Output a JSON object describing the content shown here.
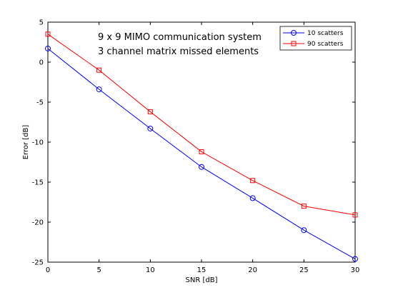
{
  "chart_data": {
    "type": "line",
    "annotation": [
      "9 x 9 MIMO communication system",
      "3 channel matrix missed elements"
    ],
    "xlabel": "SNR [dB]",
    "ylabel": "Error [dB]",
    "xlim": [
      0,
      30
    ],
    "ylim": [
      -25,
      5
    ],
    "xticks": [
      0,
      5,
      10,
      15,
      20,
      25,
      30
    ],
    "yticks": [
      5,
      0,
      -5,
      -10,
      -15,
      -20,
      -25
    ],
    "x": [
      0,
      5,
      10,
      15,
      20,
      25,
      30
    ],
    "grid": false,
    "legend_position": "top-right",
    "series": [
      {
        "name": "10 scatters",
        "color": "#0000ff",
        "marker": "circle",
        "values": [
          1.7,
          -3.4,
          -8.3,
          -13.1,
          -17.0,
          -21.0,
          -24.6
        ]
      },
      {
        "name": "90 scatters",
        "color": "#ff0000",
        "marker": "square",
        "values": [
          3.5,
          -1.0,
          -6.2,
          -11.2,
          -14.8,
          -18.0,
          -19.1
        ]
      }
    ]
  }
}
